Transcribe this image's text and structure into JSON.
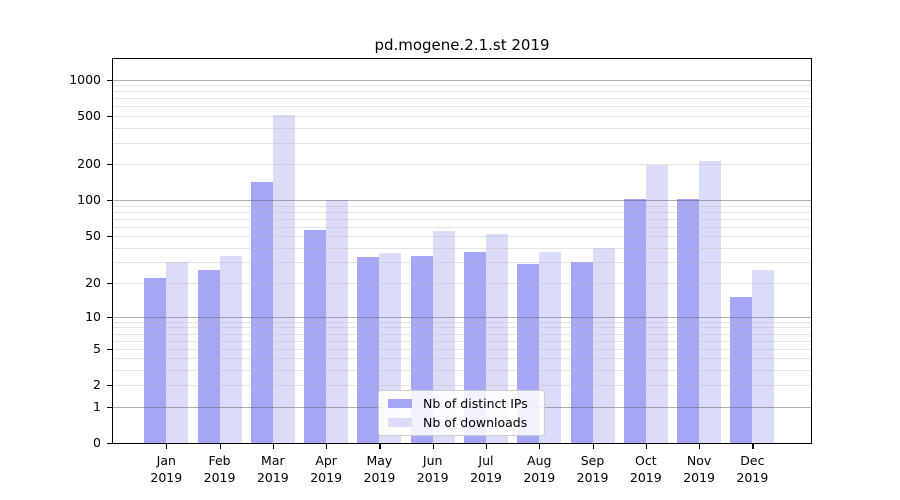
{
  "chart_data": {
    "type": "bar",
    "title": "pd.mogene.2.1.st 2019",
    "categories": [
      "Jan",
      "Feb",
      "Mar",
      "Apr",
      "May",
      "Jun",
      "Jul",
      "Aug",
      "Sep",
      "Oct",
      "Nov",
      "Dec"
    ],
    "x_year_label": "2019",
    "series": [
      {
        "name": "Nb of distinct IPs",
        "color": "#a6a6f7",
        "values": [
          22,
          26,
          143,
          56,
          33,
          34,
          37,
          29,
          30,
          103,
          103,
          15
        ]
      },
      {
        "name": "Nb of downloads",
        "color": "#dbdbfa",
        "values": [
          30,
          34,
          510,
          101,
          36,
          55,
          52,
          37,
          40,
          197,
          212,
          26
        ]
      }
    ],
    "xlabel": "",
    "ylabel": "",
    "yscale": "log1p",
    "ylim": [
      0,
      1478
    ],
    "yticks": [
      0,
      1,
      2,
      5,
      10,
      20,
      50,
      100,
      200,
      500,
      1000
    ],
    "grid_major": [
      1,
      10,
      100,
      1000
    ],
    "grid_minor": [
      2,
      3,
      4,
      5,
      6,
      7,
      8,
      9,
      20,
      30,
      40,
      50,
      60,
      70,
      80,
      90,
      200,
      300,
      400,
      500,
      600,
      700,
      800,
      900
    ],
    "legend_position": "bottom-center",
    "grid": "on"
  }
}
